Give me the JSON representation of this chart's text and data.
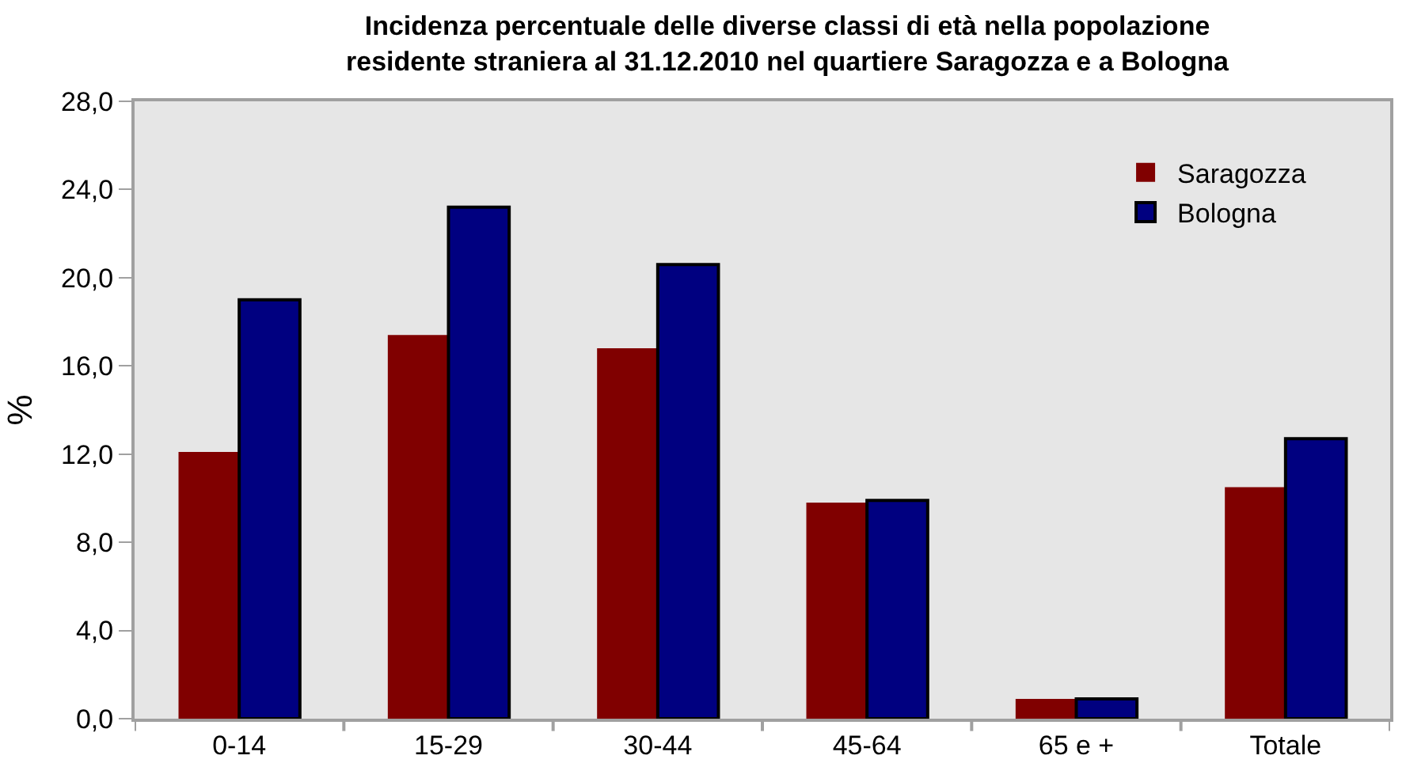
{
  "chart_data": {
    "type": "bar",
    "title": "Incidenza percentuale delle diverse classi di età nella popolazione\nresidente straniera al 31.12.2010 nel quartiere Saragozza e a Bologna",
    "ylabel": "%",
    "categories": [
      "0-14",
      "15-29",
      "30-44",
      "45-64",
      "65 e +",
      "Totale"
    ],
    "series": [
      {
        "name": "Saragozza",
        "color": "#800000",
        "values": [
          12.1,
          17.4,
          16.8,
          9.8,
          0.9,
          10.5
        ]
      },
      {
        "name": "Bologna",
        "color": "#000080",
        "values": [
          19.0,
          23.2,
          20.6,
          9.9,
          0.9,
          12.7
        ]
      }
    ],
    "ylim": [
      0,
      28
    ],
    "yticks": [
      {
        "value": 0,
        "label": "0,0"
      },
      {
        "value": 4,
        "label": "4,0"
      },
      {
        "value": 8,
        "label": "8,0"
      },
      {
        "value": 12,
        "label": "12,0"
      },
      {
        "value": 16,
        "label": "16,0"
      },
      {
        "value": 20,
        "label": "20,0"
      },
      {
        "value": 24,
        "label": "24,0"
      },
      {
        "value": 28,
        "label": "28,0"
      }
    ],
    "grid": false,
    "legend": "top right"
  }
}
